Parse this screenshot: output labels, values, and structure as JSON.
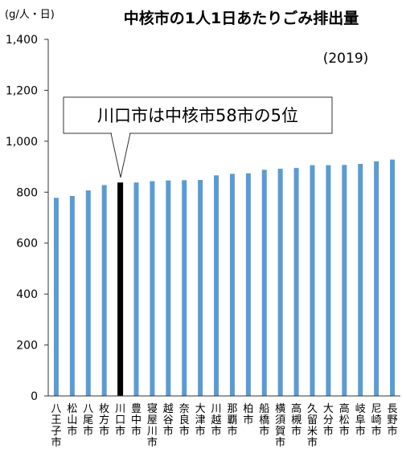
{
  "chart_data": {
    "type": "bar",
    "title": "中核市の1人1日あたりごみ排出量",
    "unit_label": "(g/人・日)",
    "year_label": "(2019)",
    "callout": "川口市は中核市58市の5位",
    "highlight_index": 4,
    "ylim": [
      0,
      1400
    ],
    "yticks": [
      "0",
      "200",
      "400",
      "600",
      "800",
      "1,000",
      "1,200",
      "1,400"
    ],
    "ytick_values": [
      0,
      200,
      400,
      600,
      800,
      1000,
      1200,
      1400
    ],
    "grid": false,
    "categories": [
      "八王子市",
      "松山市",
      "八尾市",
      "枚方市",
      "川口市",
      "豊中市",
      "寝屋川市",
      "越谷市",
      "奈良市",
      "大津市",
      "川越市",
      "那覇市",
      "柏市",
      "船橋市",
      "横須賀市",
      "高槻市",
      "久留米市",
      "大分市",
      "高松市",
      "岐阜市",
      "尼崎市",
      "長野市"
    ],
    "values": [
      778,
      785,
      807,
      828,
      838,
      838,
      843,
      846,
      847,
      848,
      866,
      872,
      874,
      888,
      892,
      895,
      906,
      906,
      907,
      911,
      921,
      928
    ],
    "colors": {
      "bar": "#5b9bd5",
      "highlight": "#000000",
      "axis": "#333333"
    }
  }
}
